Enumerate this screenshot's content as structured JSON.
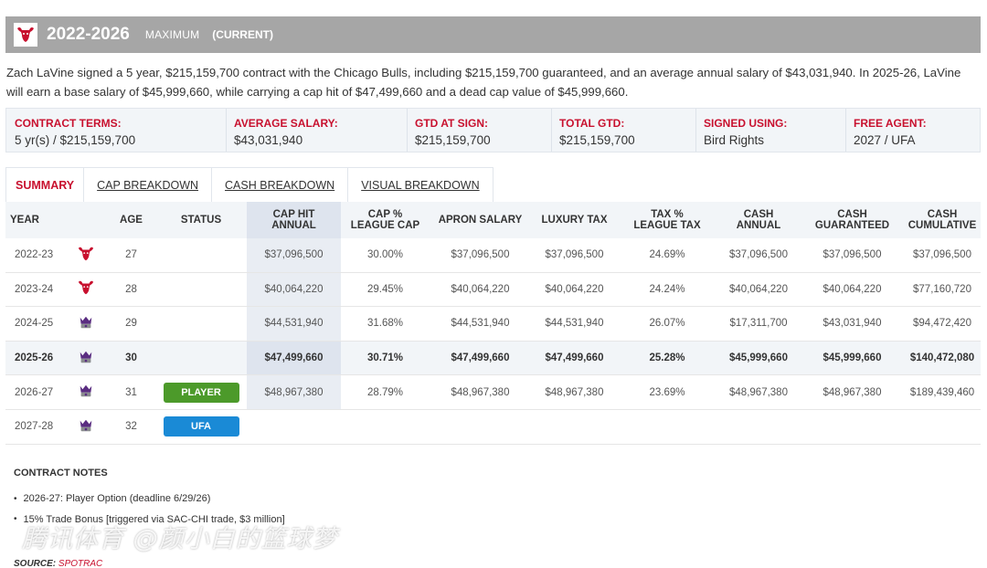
{
  "header": {
    "years": "2022-2026",
    "type": "MAXIMUM",
    "current": "(CURRENT)",
    "team_logo_icon": "bulls-logo-icon"
  },
  "summary": "Zach LaVine signed a 5 year, $215,159,700 contract with the Chicago Bulls, including $215,159,700 guaranteed, and an average annual salary of $43,031,940. In 2025-26, LaVine will earn a base salary of $45,999,660, while carrying a cap hit of $47,499,660 and a dead cap value of $45,999,660.",
  "terms": [
    {
      "label": "CONTRACT TERMS:",
      "value": "5 yr(s) / $215,159,700"
    },
    {
      "label": "AVERAGE SALARY:",
      "value": "$43,031,940"
    },
    {
      "label": "GTD AT SIGN:",
      "value": "$215,159,700"
    },
    {
      "label": "TOTAL GTD:",
      "value": "$215,159,700"
    },
    {
      "label": "SIGNED USING:",
      "value": "Bird Rights"
    },
    {
      "label": "FREE AGENT:",
      "value": "2027 / UFA"
    }
  ],
  "tabs": [
    {
      "label": "SUMMARY"
    },
    {
      "label": "CAP BREAKDOWN"
    },
    {
      "label": "CASH BREAKDOWN"
    },
    {
      "label": "VISUAL BREAKDOWN"
    }
  ],
  "table": {
    "headers": {
      "year": "YEAR",
      "age": "AGE",
      "status": "STATUS",
      "cap_hit_1": "CAP HIT",
      "cap_hit_2": "ANNUAL",
      "cap_pct_1": "CAP %",
      "cap_pct_2": "LEAGUE CAP",
      "apron": "APRON SALARY",
      "luxury": "LUXURY TAX",
      "tax_pct_1": "TAX %",
      "tax_pct_2": "LEAGUE TAX",
      "cash_annual_1": "CASH",
      "cash_annual_2": "ANNUAL",
      "cash_gtd_1": "CASH",
      "cash_gtd_2": "GUARANTEED",
      "cash_cum_1": "CASH",
      "cash_cum_2": "CUMULATIVE"
    },
    "rows": [
      {
        "year": "2022-23",
        "logo": "bulls-logo-icon",
        "age": "27",
        "status": "",
        "cap_hit": "$37,096,500",
        "cap_pct": "30.00%",
        "apron": "$37,096,500",
        "luxury": "$37,096,500",
        "tax_pct": "24.69%",
        "cash_annual": "$37,096,500",
        "cash_gtd": "$37,096,500",
        "cash_cum": "$37,096,500"
      },
      {
        "year": "2023-24",
        "logo": "bulls-logo-icon",
        "age": "28",
        "status": "",
        "cap_hit": "$40,064,220",
        "cap_pct": "29.45%",
        "apron": "$40,064,220",
        "luxury": "$40,064,220",
        "tax_pct": "24.24%",
        "cash_annual": "$40,064,220",
        "cash_gtd": "$40,064,220",
        "cash_cum": "$77,160,720"
      },
      {
        "year": "2024-25",
        "logo": "kings-logo-icon",
        "age": "29",
        "status": "",
        "cap_hit": "$44,531,940",
        "cap_pct": "31.68%",
        "apron": "$44,531,940",
        "luxury": "$44,531,940",
        "tax_pct": "26.07%",
        "cash_annual": "$17,311,700",
        "cash_gtd": "$43,031,940",
        "cash_cum": "$94,472,420"
      },
      {
        "year": "2025-26",
        "logo": "kings-logo-icon",
        "age": "30",
        "status": "",
        "cap_hit": "$47,499,660",
        "cap_pct": "30.71%",
        "apron": "$47,499,660",
        "luxury": "$47,499,660",
        "tax_pct": "25.28%",
        "cash_annual": "$45,999,660",
        "cash_gtd": "$45,999,660",
        "cash_cum": "$140,472,080"
      },
      {
        "year": "2026-27",
        "logo": "kings-logo-icon",
        "age": "31",
        "status": "PLAYER",
        "cap_hit": "$48,967,380",
        "cap_pct": "28.79%",
        "apron": "$48,967,380",
        "luxury": "$48,967,380",
        "tax_pct": "23.69%",
        "cash_annual": "$48,967,380",
        "cash_gtd": "$48,967,380",
        "cash_cum": "$189,439,460"
      },
      {
        "year": "2027-28",
        "logo": "kings-logo-icon",
        "age": "32",
        "status": "UFA",
        "cap_hit": "",
        "cap_pct": "",
        "apron": "",
        "luxury": "",
        "tax_pct": "",
        "cash_annual": "",
        "cash_gtd": "",
        "cash_cum": ""
      }
    ]
  },
  "notes": {
    "title": "CONTRACT NOTES",
    "items": [
      "2026-27: Player Option (deadline 6/29/26)",
      "15% Trade Bonus [triggered via SAC-CHI trade, $3 million]"
    ]
  },
  "watermark": "腾讯体育 @颜小白的篮球梦",
  "source": {
    "label": "SOURCE:",
    "name": "SPOTRAC"
  },
  "colors": {
    "accent_red": "#c8102e",
    "header_gray": "#a6a6a6",
    "player_green": "#4c9a2a",
    "ufa_blue": "#1a8ad6"
  }
}
